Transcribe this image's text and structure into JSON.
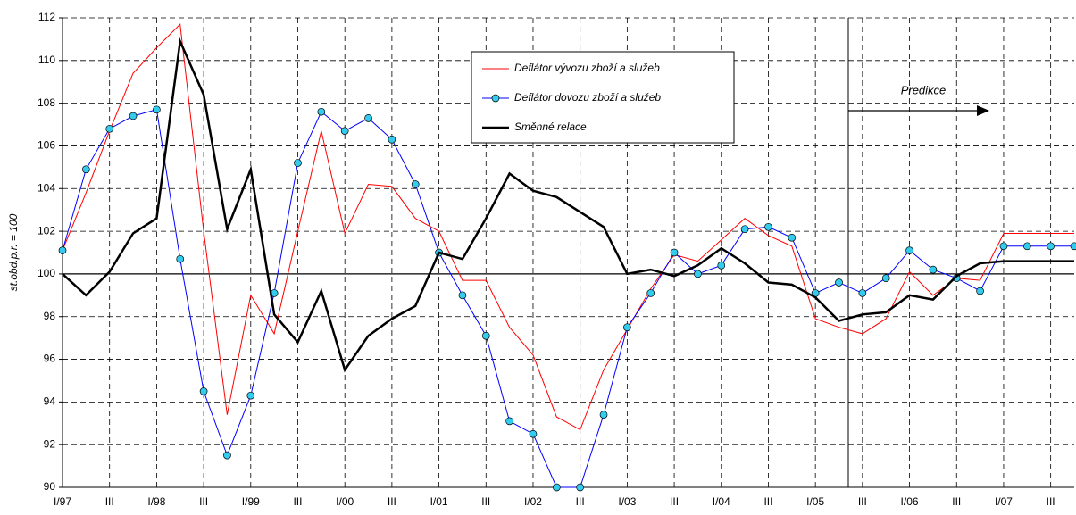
{
  "chart_data": {
    "type": "line",
    "ylabel": "st.obd.p.r. = 100",
    "annotation": "Predikce",
    "categories": [
      "I/97",
      null,
      "III",
      null,
      "I/98",
      null,
      "III",
      null,
      "I/99",
      null,
      "III",
      null,
      "I/00",
      null,
      "III",
      null,
      "I/01",
      null,
      "III",
      null,
      "I/02",
      null,
      "III",
      null,
      "I/03",
      null,
      "III",
      null,
      "I/04",
      null,
      "III",
      null,
      "I/05",
      null,
      "III",
      null,
      "I/06",
      null,
      "III",
      null,
      "I/07",
      null,
      "III",
      null
    ],
    "series": [
      {
        "name": "Deflátor vývozu zboží a služeb",
        "color": "#ff0000",
        "marker": false,
        "values": [
          101.1,
          103.8,
          106.7,
          109.4,
          110.6,
          111.7,
          102.0,
          93.4,
          99.0,
          97.2,
          102.0,
          106.7,
          101.9,
          104.2,
          104.1,
          102.6,
          102.0,
          99.7,
          99.7,
          97.5,
          96.2,
          93.3,
          92.7,
          95.5,
          97.4,
          99.3,
          100.9,
          100.6,
          101.6,
          102.6,
          101.8,
          101.3,
          97.9,
          97.5,
          97.2,
          97.9,
          100.1,
          99.0,
          99.8,
          99.7,
          101.9,
          101.9,
          101.9,
          101.9
        ]
      },
      {
        "name": "Deflátor dovozu zboží a služeb",
        "color": "#0000ff",
        "marker": true,
        "values": [
          101.1,
          104.9,
          106.8,
          107.4,
          107.7,
          100.7,
          94.5,
          91.5,
          94.3,
          99.1,
          105.2,
          107.6,
          106.7,
          107.3,
          106.3,
          104.2,
          101.0,
          99.0,
          97.1,
          93.1,
          92.5,
          90.0,
          90.0,
          93.4,
          97.5,
          99.1,
          101.0,
          100.0,
          100.4,
          102.1,
          102.2,
          101.7,
          99.1,
          99.6,
          99.1,
          99.8,
          101.1,
          100.2,
          99.8,
          99.2,
          101.3,
          101.3,
          101.3,
          101.3
        ]
      },
      {
        "name": "Směnné relace",
        "color": "#000000",
        "marker": false,
        "values": [
          100.0,
          99.0,
          100.1,
          101.9,
          102.6,
          110.9,
          108.4,
          102.1,
          104.9,
          98.1,
          96.8,
          99.2,
          95.5,
          97.1,
          97.9,
          98.5,
          101.0,
          100.7,
          102.6,
          104.7,
          103.9,
          103.6,
          102.9,
          102.2,
          100.0,
          100.2,
          99.9,
          100.4,
          101.2,
          100.5,
          99.6,
          99.5,
          98.9,
          97.8,
          98.1,
          98.2,
          99.0,
          98.8,
          99.9,
          100.5,
          100.6,
          100.6,
          100.6,
          100.6
        ]
      }
    ],
    "ylim": [
      90,
      112
    ],
    "yticks": [
      90,
      92,
      94,
      96,
      98,
      100,
      102,
      104,
      106,
      108,
      110,
      112
    ],
    "reference_line": 100,
    "grid": true
  }
}
